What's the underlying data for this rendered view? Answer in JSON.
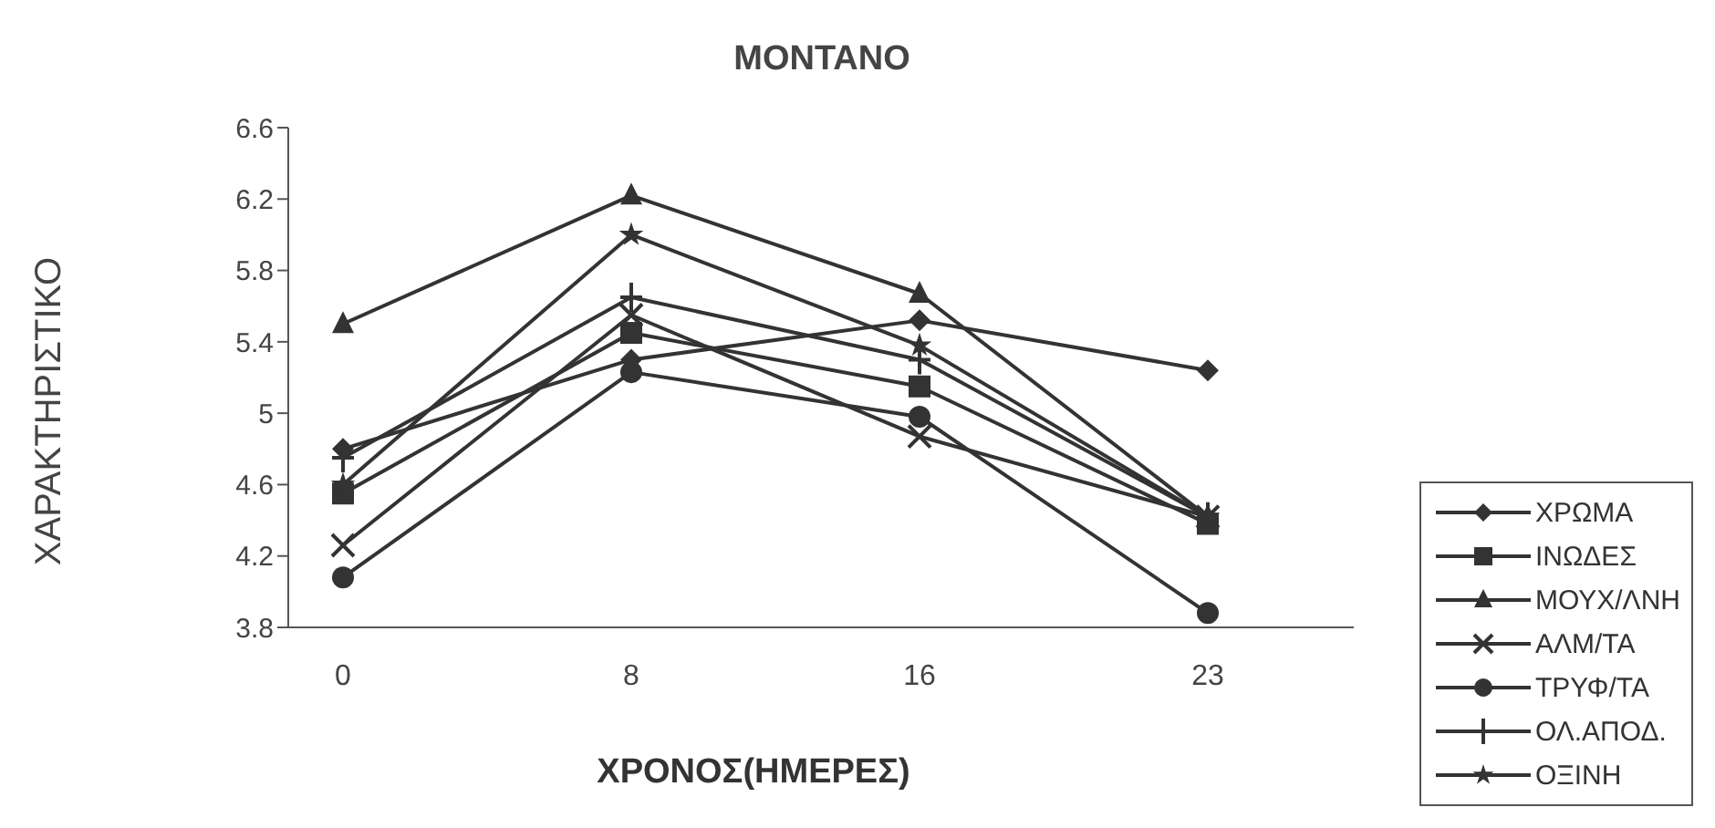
{
  "chart_data": {
    "type": "line",
    "title": "MONTANO",
    "xlabel": "ΧΡΟΝΟΣ(ΗΜΕΡΕΣ)",
    "ylabel": "ΧΑΡΑΚΤΗΡΙΣΤΙΚΟ",
    "categories": [
      "0",
      "8",
      "16",
      "23"
    ],
    "ylim": [
      3.8,
      6.6
    ],
    "yticks": [
      3.8,
      4.2,
      4.6,
      5,
      5.4,
      5.8,
      6.2,
      6.6
    ],
    "grid": false,
    "legend": "bottom right",
    "series": [
      {
        "name": "ΧΡΩΜΑ",
        "color": "#333333",
        "marker": "diamond",
        "values": [
          4.8,
          5.3,
          5.52,
          5.24
        ]
      },
      {
        "name": "ΙΝΩΔΕΣ",
        "color": "#333333",
        "marker": "square",
        "values": [
          4.55,
          5.45,
          5.15,
          4.38
        ]
      },
      {
        "name": "ΜΟΥΧ/ΛΝΗ",
        "color": "#333333",
        "marker": "triangle",
        "values": [
          5.5,
          6.22,
          5.67,
          4.42
        ]
      },
      {
        "name": "ΑΛΜ/ΤΑ",
        "color": "#333333",
        "marker": "cross",
        "values": [
          4.26,
          5.55,
          4.87,
          4.42
        ]
      },
      {
        "name": "ΤΡΥΦ/ΤΑ",
        "color": "#333333",
        "marker": "circle",
        "values": [
          4.08,
          5.23,
          4.98,
          3.88
        ]
      },
      {
        "name": "ΟΛ.ΑΠΟΔ.",
        "color": "#333333",
        "marker": "plus",
        "values": [
          4.75,
          5.65,
          5.3,
          4.42
        ]
      },
      {
        "name": "ΟΞΙΝΗ",
        "color": "#333333",
        "marker": "star",
        "values": [
          4.6,
          6.0,
          5.38,
          4.42
        ]
      }
    ]
  }
}
